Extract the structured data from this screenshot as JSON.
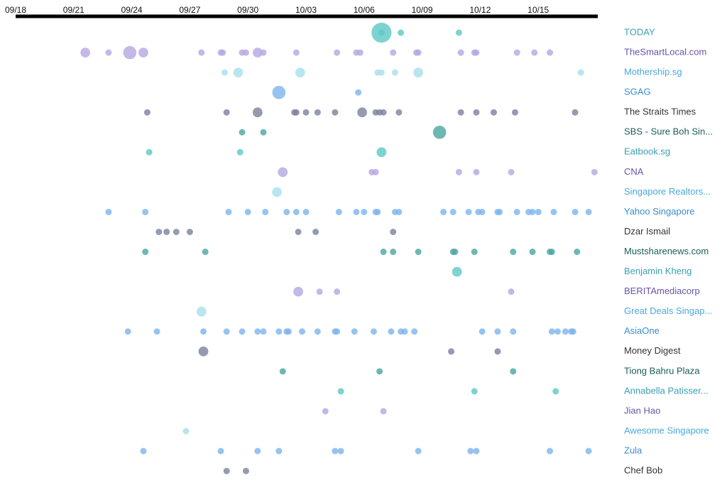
{
  "chart_data": {
    "type": "scatter",
    "xlim": [
      0,
      30
    ],
    "xticks": [
      {
        "value": 0,
        "label": "09/18"
      },
      {
        "value": 3,
        "label": "09/21"
      },
      {
        "value": 6,
        "label": "09/24"
      },
      {
        "value": 9,
        "label": "09/27"
      },
      {
        "value": 12,
        "label": "09/30"
      },
      {
        "value": 15,
        "label": "10/03"
      },
      {
        "value": 18,
        "label": "10/06"
      },
      {
        "value": 21,
        "label": "10/09"
      },
      {
        "value": 24,
        "label": "10/12"
      },
      {
        "value": 27,
        "label": "10/15"
      }
    ],
    "series": [
      {
        "name": "TODAY",
        "color": "#5cc8c4",
        "label_color": "#3a9fb5",
        "x": [
          18.9,
          18.9,
          19.9,
          22.9
        ],
        "sizes": [
          5,
          1,
          1,
          1
        ]
      },
      {
        "name": "TheSmartLocal.com",
        "color": "#b5a6e0",
        "label_color": "#6a54a8",
        "x": [
          3.6,
          4.8,
          5.9,
          6.6,
          9.6,
          10.6,
          10.7,
          11.7,
          11.9,
          12.5,
          12.8,
          14.5,
          16.6,
          17.6,
          17.8,
          19.5,
          20.7,
          20.8,
          23.0,
          23.7,
          23.8,
          25.9,
          26.8,
          27.6
        ],
        "sizes": [
          2,
          1,
          3,
          2,
          1,
          1,
          1,
          1,
          1,
          2,
          1,
          1,
          1,
          1,
          1,
          1,
          1,
          1,
          1,
          1,
          1,
          1,
          1,
          1
        ]
      },
      {
        "name": "Mothership.sg",
        "color": "#a8e0ea",
        "label_color": "#4aa8dc",
        "x": [
          10.8,
          11.5,
          14.7,
          18.7,
          18.9,
          19.6,
          20.8,
          29.2
        ],
        "sizes": [
          1,
          2,
          2,
          1,
          1,
          1,
          2,
          1
        ]
      },
      {
        "name": "SGAG",
        "color": "#7db4ec",
        "label_color": "#3a8cd0",
        "x": [
          13.6,
          17.7
        ],
        "sizes": [
          3,
          1
        ]
      },
      {
        "name": "The Straits Times",
        "color": "#7a819e",
        "label_color": "#333333",
        "x": [
          6.8,
          10.9,
          12.5,
          14.4,
          14.5,
          15.0,
          15.6,
          16.5,
          17.9,
          18.6,
          18.8,
          19.0,
          19.8,
          23.0,
          23.8,
          24.7,
          25.8,
          28.9
        ],
        "sizes": [
          1,
          1,
          2,
          1,
          1,
          1,
          1,
          1,
          2,
          1,
          1,
          1,
          1,
          1,
          1,
          1,
          1,
          1
        ]
      },
      {
        "name": "SBS - Sure Boh Sin...",
        "color": "#4aa6a0",
        "label_color": "#1b5c5c",
        "x": [
          11.7,
          12.8,
          21.9
        ],
        "sizes": [
          1,
          1,
          3
        ]
      },
      {
        "name": "Eatbook.sg",
        "color": "#5cc8c4",
        "label_color": "#3a9fb5",
        "x": [
          6.9,
          11.6,
          18.9
        ],
        "sizes": [
          1,
          1,
          2
        ]
      },
      {
        "name": "CNA",
        "color": "#b5a6e0",
        "label_color": "#6a54a8",
        "x": [
          13.8,
          18.4,
          18.6,
          22.9,
          23.8,
          25.6,
          29.9
        ],
        "sizes": [
          2,
          1,
          1,
          1,
          1,
          1,
          1
        ]
      },
      {
        "name": "Singapore Realtors...",
        "color": "#a8e0ea",
        "label_color": "#4aa8dc",
        "x": [
          13.5
        ],
        "sizes": [
          2
        ]
      },
      {
        "name": "Yahoo Singapore",
        "color": "#7db4ec",
        "label_color": "#3a8cd0",
        "x": [
          4.8,
          6.7,
          11.0,
          12.0,
          12.9,
          14.0,
          14.5,
          15.0,
          16.7,
          17.6,
          18.0,
          18.6,
          18.7,
          19.6,
          19.8,
          22.1,
          22.6,
          23.4,
          23.9,
          24.1,
          24.9,
          25.0,
          25.9,
          26.5,
          26.7,
          27.0,
          27.8,
          28.9,
          29.6
        ],
        "sizes": [
          1,
          1,
          1,
          1,
          1,
          1,
          1,
          1,
          1,
          1,
          1,
          1,
          1,
          1,
          1,
          1,
          1,
          1,
          1,
          1,
          1,
          1,
          1,
          1,
          1,
          1,
          1,
          1,
          1
        ]
      },
      {
        "name": "Dzar Ismail",
        "color": "#7a819e",
        "label_color": "#333333",
        "x": [
          7.4,
          7.8,
          8.3,
          9.0,
          14.6,
          15.5,
          19.5
        ],
        "sizes": [
          1,
          1,
          1,
          1,
          1,
          1,
          1
        ]
      },
      {
        "name": "Mustsharenews.com",
        "color": "#4aa6a0",
        "label_color": "#1b5c5c",
        "x": [
          6.7,
          9.8,
          19.0,
          19.5,
          20.8,
          22.6,
          22.7,
          23.7,
          25.7,
          26.7,
          27.6,
          27.7,
          29.0
        ],
        "sizes": [
          1,
          1,
          1,
          1,
          1,
          1,
          1,
          1,
          1,
          1,
          1,
          1,
          1
        ]
      },
      {
        "name": "Benjamin Kheng",
        "color": "#5cc8c4",
        "label_color": "#3a9fb5",
        "x": [
          22.8
        ],
        "sizes": [
          2
        ]
      },
      {
        "name": "BERITAmediacorp",
        "color": "#b5a6e0",
        "label_color": "#6a54a8",
        "x": [
          14.6,
          15.7,
          16.6,
          25.6
        ],
        "sizes": [
          2,
          1,
          1,
          1
        ]
      },
      {
        "name": "Great Deals Singap...",
        "color": "#a8e0ea",
        "label_color": "#4aa8dc",
        "x": [
          9.6
        ],
        "sizes": [
          2
        ]
      },
      {
        "name": "AsiaOne",
        "color": "#7db4ec",
        "label_color": "#3a8cd0",
        "x": [
          5.8,
          7.3,
          9.7,
          10.9,
          11.7,
          12.5,
          12.8,
          13.6,
          14.0,
          14.1,
          14.8,
          15.6,
          16.5,
          16.6,
          17.5,
          18.5,
          19.4,
          19.9,
          20.1,
          20.6,
          24.1,
          24.9,
          25.7,
          27.7,
          28.0,
          28.4,
          28.7,
          28.8
        ],
        "sizes": [
          1,
          1,
          1,
          1,
          1,
          1,
          1,
          1,
          1,
          1,
          1,
          1,
          1,
          1,
          1,
          1,
          1,
          1,
          1,
          1,
          1,
          1,
          1,
          1,
          1,
          1,
          1,
          1
        ]
      },
      {
        "name": "Money Digest",
        "color": "#7a819e",
        "label_color": "#333333",
        "x": [
          9.7,
          22.5,
          24.9
        ],
        "sizes": [
          2,
          1,
          1
        ]
      },
      {
        "name": "Tiong Bahru Plaza",
        "color": "#4aa6a0",
        "label_color": "#1b5c5c",
        "x": [
          13.8,
          18.8,
          25.7
        ],
        "sizes": [
          1,
          1,
          1
        ]
      },
      {
        "name": "Annabella Patisser...",
        "color": "#5cc8c4",
        "label_color": "#3a9fb5",
        "x": [
          16.8,
          23.7,
          27.9
        ],
        "sizes": [
          1,
          1,
          1
        ]
      },
      {
        "name": "Jian Hao",
        "color": "#b5a6e0",
        "label_color": "#6a54a8",
        "x": [
          16.0,
          19.0
        ],
        "sizes": [
          1,
          1
        ]
      },
      {
        "name": "Awesome Singapore",
        "color": "#a8e0ea",
        "label_color": "#4aa8dc",
        "x": [
          8.8
        ],
        "sizes": [
          1
        ]
      },
      {
        "name": "Zula",
        "color": "#7db4ec",
        "label_color": "#3a8cd0",
        "x": [
          6.6,
          10.6,
          12.5,
          13.6,
          16.5,
          16.8,
          20.8,
          23.5,
          23.8,
          27.6,
          29.6
        ],
        "sizes": [
          1,
          1,
          1,
          1,
          1,
          1,
          1,
          1,
          1,
          1,
          1
        ]
      },
      {
        "name": "Chef Bob",
        "color": "#7a819e",
        "label_color": "#333333",
        "x": [
          10.9,
          11.9
        ],
        "sizes": [
          1,
          1
        ]
      }
    ]
  }
}
